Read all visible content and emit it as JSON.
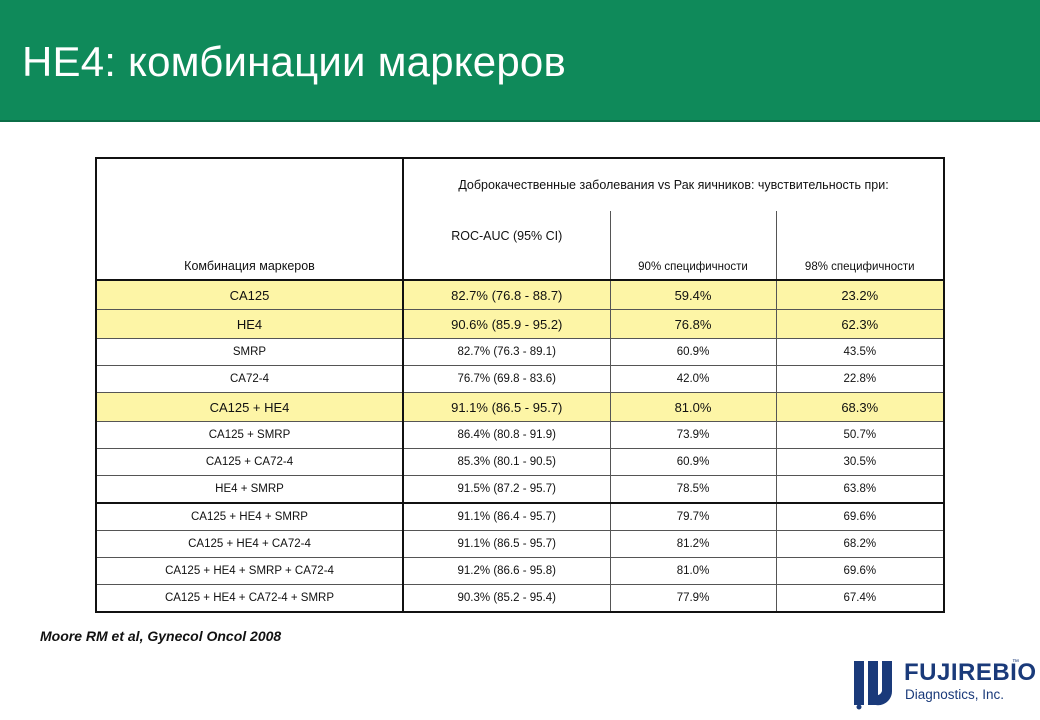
{
  "slide": {
    "title": "HE4: комбинации маркеров",
    "reference": "Moore RM et al, Gynecol Oncol 2008"
  },
  "table": {
    "header": {
      "marker_col": "Комбинация маркеров",
      "group_title": "Доброкачественные заболевания vs Рак яичников:  чувствительность при:",
      "roc": "ROC-AUC (95% CI)",
      "spec90": "90% специфичности",
      "spec98": "98% специфичности"
    },
    "rows": [
      {
        "marker": "CA125",
        "roc": "82.7%  (76.8 - 88.7)",
        "s90": "59.4%",
        "s98": "23.2%",
        "highlight": true
      },
      {
        "marker": "HE4",
        "roc": "90.6%  (85.9 - 95.2)",
        "s90": "76.8%",
        "s98": "62.3%",
        "highlight": true
      },
      {
        "marker": "SMRP",
        "roc": "82.7%  (76.3 - 89.1)",
        "s90": "60.9%",
        "s98": "43.5%",
        "highlight": false
      },
      {
        "marker": "CA72-4",
        "roc": "76.7%  (69.8 - 83.6)",
        "s90": "42.0%",
        "s98": "22.8%",
        "highlight": false
      },
      {
        "marker": "CA125 + HE4",
        "roc": "91.1%  (86.5 - 95.7)",
        "s90": "81.0%",
        "s98": "68.3%",
        "highlight": true
      },
      {
        "marker": "CA125  + SMRP",
        "roc": "86.4%  (80.8 - 91.9)",
        "s90": "73.9%",
        "s98": "50.7%",
        "highlight": false
      },
      {
        "marker": "CA125  + CA72-4",
        "roc": "85.3%  (80.1 - 90.5)",
        "s90": "60.9%",
        "s98": "30.5%",
        "highlight": false
      },
      {
        "marker": "HE4 + SMRP",
        "roc": "91.5%  (87.2 - 95.7)",
        "s90": "78.5%",
        "s98": "63.8%",
        "highlight": false
      },
      {
        "marker": "CA125  + HE4 + SMRP",
        "roc": "91.1%  (86.4 - 95.7)",
        "s90": "79.7%",
        "s98": "69.6%",
        "highlight": false
      },
      {
        "marker": "CA125  + HE4 + CA72-4",
        "roc": "91.1%  (86.5 - 95.7)",
        "s90": "81.2%",
        "s98": "68.2%",
        "highlight": false
      },
      {
        "marker": "CA125  + HE4 + SMRP + CA72-4",
        "roc": "91.2%  (86.6 - 95.8)",
        "s90": "81.0%",
        "s98": "69.6%",
        "highlight": false
      },
      {
        "marker": "CA125  + HE4 + CA72-4 + SMRP",
        "roc": "90.3%  (85.2 - 95.4)",
        "s90": "77.9%",
        "s98": "67.4%",
        "highlight": false
      }
    ]
  },
  "logo": {
    "brand": "FUJIREBIO",
    "trademark": "™",
    "subtitle": "Diagnostics, Inc.",
    "icon": "fujirebio-logo-icon"
  },
  "colors": {
    "header_green": "#0f8a5a",
    "highlight_yellow": "#fdf5a6",
    "logo_blue": "#1a3a7a"
  }
}
